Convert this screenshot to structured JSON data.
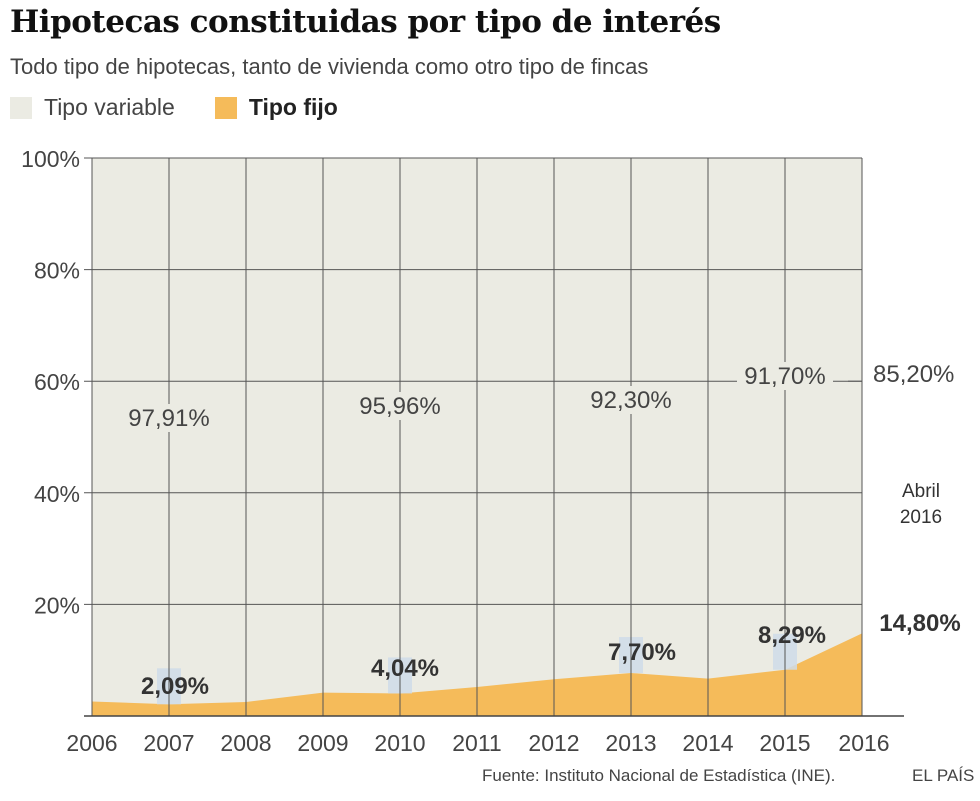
{
  "title": "Hipotecas constituidas por tipo de interés",
  "subtitle": "Todo tipo de hipotecas, tanto de vivienda como otro tipo de fincas",
  "legend": {
    "variable": "Tipo variable",
    "fijo": "Tipo fijo"
  },
  "colors": {
    "variable": "#ebebe3",
    "fijo": "#f5bb5a",
    "highlight": "#cfdce9",
    "grid": "#555555"
  },
  "footer": {
    "source": "Fuente: Instituto Nacional de Estadística (INE).",
    "brand": "EL PAÍS"
  },
  "chart_data": {
    "type": "area",
    "title": "Hipotecas constituidas por tipo de interés",
    "ylim": [
      0,
      100
    ],
    "y_ticks": [
      20,
      40,
      60,
      80,
      100
    ],
    "y_tick_labels": [
      "20%",
      "40%",
      "60%",
      "80%",
      "100%"
    ],
    "x_labels": [
      "2006",
      "2007",
      "2008",
      "2009",
      "2010",
      "2011",
      "2012",
      "2013",
      "2014",
      "2015",
      "2016"
    ],
    "x": [
      2006,
      2007,
      2008,
      2009,
      2010,
      2011,
      2012,
      2013,
      2014,
      2015,
      2016
    ],
    "series": [
      {
        "name": "Tipo fijo",
        "values": [
          2.6,
          2.09,
          2.5,
          4.2,
          4.04,
          5.2,
          6.6,
          7.7,
          6.7,
          8.29,
          14.8
        ]
      },
      {
        "name": "Tipo variable",
        "values": [
          97.4,
          97.91,
          97.5,
          95.8,
          95.96,
          94.8,
          93.4,
          92.3,
          93.3,
          91.7,
          85.2
        ]
      }
    ],
    "variable_labels": [
      {
        "x": 2007,
        "text": "97,91%"
      },
      {
        "x": 2010,
        "text": "95,96%"
      },
      {
        "x": 2013,
        "text": "92,30%"
      },
      {
        "x": 2015,
        "text": "91,70%"
      },
      {
        "x": 2016,
        "text": "85,20%"
      }
    ],
    "fijo_labels": [
      {
        "x": 2007,
        "text": "2,09%"
      },
      {
        "x": 2010,
        "text": "4,04%"
      },
      {
        "x": 2013,
        "text": "7,70%"
      },
      {
        "x": 2015,
        "text": "8,29%"
      },
      {
        "x": 2016,
        "text": "14,80%"
      }
    ],
    "annotation": [
      "Abril",
      "2016"
    ]
  }
}
